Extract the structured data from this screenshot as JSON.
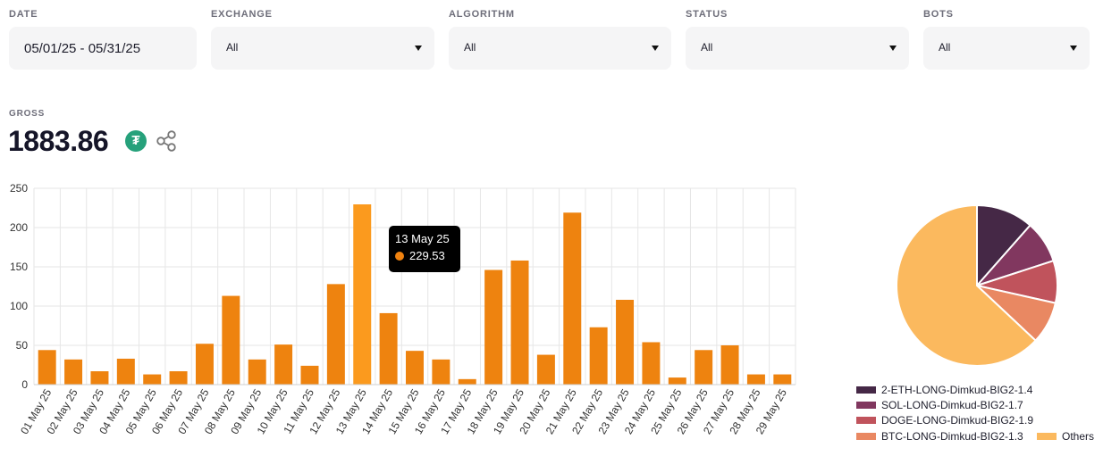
{
  "filters": {
    "date": {
      "label": "DATE",
      "value": "05/01/25 - 05/31/25"
    },
    "exchange": {
      "label": "EXCHANGE",
      "value": "All"
    },
    "algorithm": {
      "label": "ALGORITHM",
      "value": "All"
    },
    "status": {
      "label": "STATUS",
      "value": "All"
    },
    "bots": {
      "label": "BOTS",
      "value": "All"
    }
  },
  "gross": {
    "label": "GROSS",
    "value": "1883.86",
    "currency_icon": "tether-icon",
    "currency_symbol": "₮"
  },
  "tooltip": {
    "date": "13 May 25",
    "value": "229.53",
    "dot_color": "#f0820f"
  },
  "colors": {
    "bar": "#ee830f",
    "bar_highlight": "#fb9a1e",
    "grid": "#e6e6e6"
  },
  "chart_data": [
    {
      "type": "bar",
      "categories": [
        "01 May 25",
        "02 May 25",
        "03 May 25",
        "04 May 25",
        "05 May 25",
        "06 May 25",
        "07 May 25",
        "08 May 25",
        "09 May 25",
        "10 May 25",
        "11 May 25",
        "12 May 25",
        "13 May 25",
        "14 May 25",
        "15 May 25",
        "16 May 25",
        "17 May 25",
        "18 May 25",
        "19 May 25",
        "20 May 25",
        "21 May 25",
        "22 May 25",
        "23 May 25",
        "24 May 25",
        "25 May 25",
        "26 May 25",
        "27 May 25",
        "28 May 25",
        "29 May 25"
      ],
      "values": [
        44,
        32,
        17,
        33,
        13,
        17,
        52,
        113,
        32,
        51,
        24,
        128,
        229.53,
        91,
        43,
        32,
        7,
        146,
        158,
        38,
        219,
        73,
        108,
        54,
        9,
        44,
        50,
        13,
        13
      ],
      "yticks": [
        0,
        50,
        100,
        150,
        200,
        250
      ],
      "ylim": [
        0,
        250
      ],
      "grid": true
    },
    {
      "type": "pie",
      "slices": [
        {
          "name": "2-ETH-LONG-Dimkud-BIG2-1.4",
          "value": 11.5,
          "color": "#452846"
        },
        {
          "name": "SOL-LONG-Dimkud-BIG2-1.7",
          "value": 8.5,
          "color": "#81375f"
        },
        {
          "name": "DOGE-LONG-Dimkud-BIG2-1.9",
          "value": 8.5,
          "color": "#c0535c"
        },
        {
          "name": "BTC-LONG-Dimkud-BIG2-1.3",
          "value": 8.5,
          "color": "#e98862"
        },
        {
          "name": "Others",
          "value": 63,
          "color": "#fbb95e"
        }
      ],
      "legend": "bottom"
    }
  ]
}
